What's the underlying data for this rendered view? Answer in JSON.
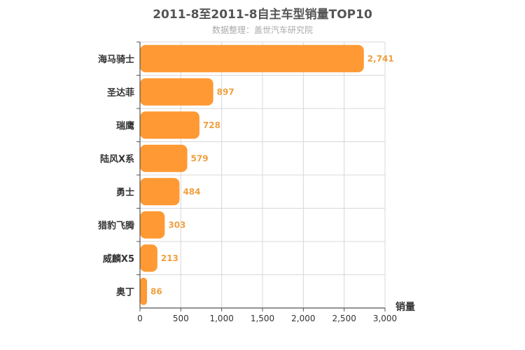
{
  "chart_data": {
    "type": "bar",
    "orientation": "horizontal",
    "title": "2011-8至2011-8自主车型销量TOP10",
    "subtitle": "数据整理：盖世汽车研究院",
    "categories": [
      "海马骑士",
      "圣达菲",
      "瑞鹰",
      "陆风X系",
      "勇士",
      "猎豹飞腾",
      "威麟X5",
      "奥丁"
    ],
    "values": [
      2741,
      897,
      728,
      579,
      484,
      303,
      213,
      86
    ],
    "value_labels": [
      "2,741",
      "897",
      "728",
      "579",
      "484",
      "303",
      "213",
      "86"
    ],
    "xlabel": "销量",
    "xlim": [
      0,
      3000
    ],
    "ticks": [
      0,
      500,
      1000,
      1500,
      2000,
      2500,
      3000
    ],
    "tick_labels": [
      "0",
      "500",
      "1,000",
      "1,500",
      "2,000",
      "2,500",
      "3,000"
    ],
    "grid": true,
    "bar_color": "#ff9933",
    "label_color": "#f0a040"
  }
}
